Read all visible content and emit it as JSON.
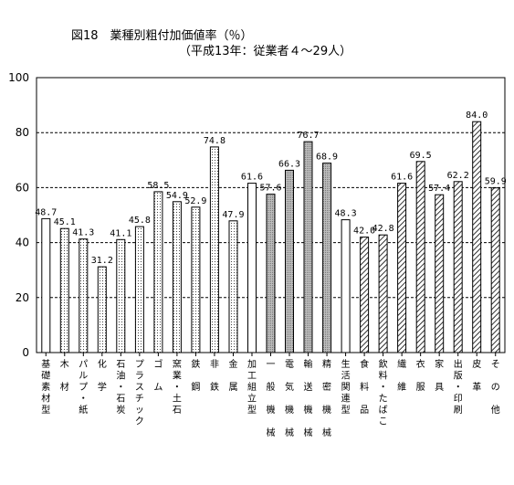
{
  "chart_data": {
    "type": "bar",
    "title": "図18　業種別粗付加価値率（％）",
    "subtitle": "（平成13年：従業者４～29人）",
    "xlabel": "",
    "ylabel": "",
    "ylim": [
      0,
      100
    ],
    "yticks": [
      "0",
      "20",
      "40",
      "60",
      "80",
      "100"
    ],
    "grid": "dashed-horizontal",
    "legend": "none",
    "colors": {
      "bar_stroke": "#000000",
      "background": "#ffffff"
    },
    "categories": [
      "基礎素材型",
      "木材",
      "パルプ・紙",
      "化学",
      "石油・石炭",
      "プラスチック",
      "ゴム",
      "窯業・土石",
      "鉄鋼",
      "非鉄",
      "金属",
      "加工組立型",
      "一般機械",
      "電気機械",
      "輸送機械",
      "精密機械",
      "生活関連型",
      "食料品",
      "飲料・たばこ",
      "繊維",
      "衣服",
      "家具",
      "出版・印刷",
      "皮革",
      "その他"
    ],
    "category_labels": [
      [
        "基",
        "礎",
        "素",
        "材",
        "型"
      ],
      [
        "木",
        "",
        "材"
      ],
      [
        "パ",
        "ル",
        "プ",
        "・",
        "紙"
      ],
      [
        "化",
        "",
        "学"
      ],
      [
        "石",
        "油",
        "・",
        "石",
        "炭"
      ],
      [
        "プ",
        "ラ",
        "ス",
        "チ",
        "ッ",
        "ク"
      ],
      [
        "ゴ",
        "",
        "ム"
      ],
      [
        "窯",
        "業",
        "・",
        "土",
        "石"
      ],
      [
        "鉄",
        "",
        "鋼"
      ],
      [
        "非",
        "",
        "鉄"
      ],
      [
        "金",
        "",
        "属"
      ],
      [
        "加",
        "工",
        "組",
        "立",
        "型"
      ],
      [
        "一",
        "",
        "般",
        "",
        "機",
        "",
        "械"
      ],
      [
        "電",
        "",
        "気",
        "",
        "機",
        "",
        "械"
      ],
      [
        "輸",
        "",
        "送",
        "",
        "機",
        "",
        "械"
      ],
      [
        "精",
        "",
        "密",
        "",
        "機",
        "",
        "械"
      ],
      [
        "生",
        "活",
        "関",
        "連",
        "型"
      ],
      [
        "食",
        "",
        "料",
        "",
        "品"
      ],
      [
        "飲",
        "料",
        "・",
        "た",
        "ば",
        "こ"
      ],
      [
        "繊",
        "",
        "維"
      ],
      [
        "衣",
        "",
        "服"
      ],
      [
        "家",
        "",
        "具"
      ],
      [
        "出",
        "版",
        "・",
        "印",
        "刷"
      ],
      [
        "皮",
        "",
        "革"
      ],
      [
        "そ",
        "",
        "の",
        "",
        "他"
      ]
    ],
    "values": [
      48.7,
      45.1,
      41.3,
      31.2,
      41.1,
      45.8,
      58.5,
      54.9,
      52.9,
      74.8,
      47.9,
      61.6,
      57.6,
      66.3,
      76.7,
      68.9,
      48.3,
      42.0,
      42.8,
      61.6,
      69.5,
      57.4,
      62.2,
      84.0,
      59.9
    ],
    "data_labels": [
      "48.7",
      "45.1",
      "41.3",
      "31.2",
      "41.1",
      "45.8",
      "58.5",
      "54.9",
      "52.9",
      "74.8",
      "47.9",
      "61.6",
      "57.6",
      "66.3",
      "76.7",
      "68.9",
      "48.3",
      "42.0",
      "42.8",
      "61.6",
      "69.5",
      "57.4",
      "62.2",
      "84.0",
      "59.9"
    ],
    "bar_pattern": [
      "blank",
      "dots",
      "dots",
      "dots",
      "dots",
      "dots",
      "dots",
      "dots",
      "dots",
      "dots",
      "dots",
      "blank",
      "grey",
      "grey",
      "grey",
      "grey",
      "blank",
      "hatch",
      "hatch",
      "hatch",
      "hatch",
      "hatch",
      "hatch",
      "hatch",
      "hatch"
    ]
  }
}
